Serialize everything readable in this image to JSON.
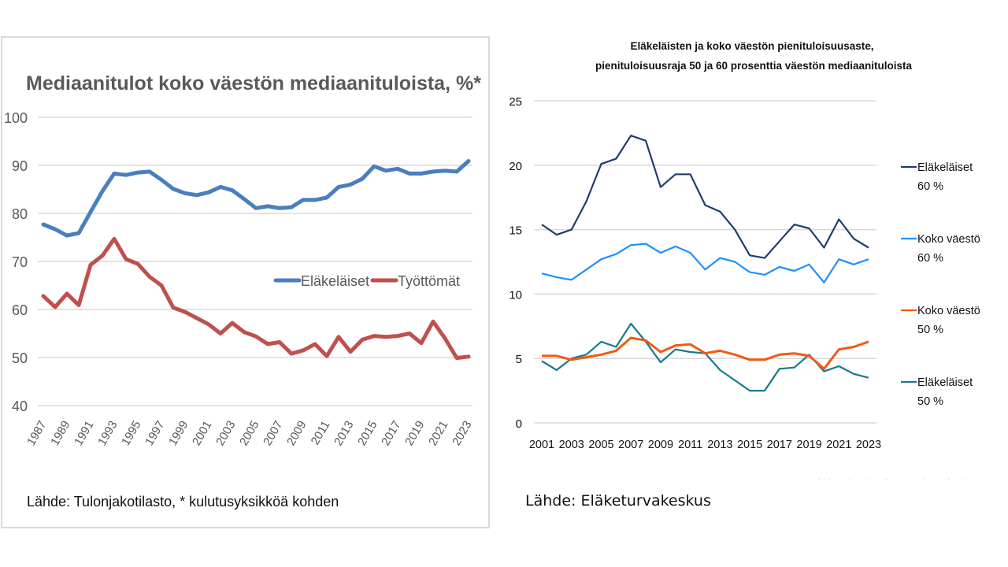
{
  "chart_data": [
    {
      "type": "line",
      "title": "Mediaanitulot koko väestön mediaanituloista, %*",
      "xlabel": "",
      "ylabel": "",
      "ylim": [
        40,
        100
      ],
      "yticks": [
        "40",
        "50",
        "60",
        "70",
        "80",
        "90",
        "100"
      ],
      "xtick_labels": [
        "1987",
        "1989",
        "1991",
        "1993",
        "1995",
        "1997",
        "1999",
        "2001",
        "2003",
        "2005",
        "2007",
        "2009",
        "2011",
        "2013",
        "2015",
        "2017",
        "2019",
        "2021",
        "2023"
      ],
      "grid": true,
      "legend_position": "center-right",
      "x": [
        1987,
        1988,
        1989,
        1990,
        1991,
        1992,
        1993,
        1994,
        1995,
        1996,
        1997,
        1998,
        1999,
        2000,
        2001,
        2002,
        2003,
        2004,
        2005,
        2006,
        2007,
        2008,
        2009,
        2010,
        2011,
        2012,
        2013,
        2014,
        2015,
        2016,
        2017,
        2018,
        2019,
        2020,
        2021,
        2022,
        2023
      ],
      "series": [
        {
          "name": "Eläkeläiset",
          "color": "#4a7ebf",
          "values": [
            77.7,
            76.7,
            75.4,
            75.9,
            80.3,
            84.6,
            88.3,
            88.0,
            88.5,
            88.7,
            87.0,
            85.1,
            84.2,
            83.8,
            84.4,
            85.5,
            84.8,
            83.0,
            81.1,
            81.5,
            81.1,
            81.3,
            82.8,
            82.8,
            83.3,
            85.5,
            86.0,
            87.2,
            89.8,
            88.9,
            89.3,
            88.3,
            88.3,
            88.7,
            88.9,
            88.7,
            90.9
          ]
        },
        {
          "name": "Työttömät",
          "color": "#c0504d",
          "values": [
            62.8,
            60.5,
            63.3,
            60.9,
            69.3,
            71.2,
            74.7,
            70.5,
            69.5,
            66.8,
            65.0,
            60.4,
            59.5,
            58.2,
            56.9,
            55.0,
            57.2,
            55.3,
            54.4,
            52.8,
            53.2,
            50.8,
            51.5,
            52.8,
            50.3,
            54.3,
            51.2,
            53.7,
            54.5,
            54.3,
            54.5,
            55.0,
            53.0,
            57.5,
            54.0,
            49.9,
            50.2
          ]
        }
      ],
      "source": "Lähde: Tulonjakotilasto, * kulutusyksikköä kohden"
    },
    {
      "type": "line",
      "title": "Eläkeläisten ja koko väestön pienituloisuusaste,",
      "subtitle": "pienituloisuusraja 50 ja 60 prosenttia väestön mediaanituloista",
      "xlabel": "",
      "ylabel": "",
      "ylim": [
        0,
        25
      ],
      "yticks": [
        "0",
        "5",
        "10",
        "15",
        "20",
        "25"
      ],
      "xtick_labels": [
        "2001",
        "2003",
        "2005",
        "2007",
        "2009",
        "2011",
        "2013",
        "2015",
        "2017",
        "2019",
        "2021",
        "2023"
      ],
      "grid": true,
      "legend_position": "right",
      "x": [
        2001,
        2002,
        2003,
        2004,
        2005,
        2006,
        2007,
        2008,
        2009,
        2010,
        2011,
        2012,
        2013,
        2014,
        2015,
        2016,
        2017,
        2018,
        2019,
        2020,
        2021,
        2022,
        2023
      ],
      "series": [
        {
          "name": "Eläkeläiset 60 %",
          "legend_line1": "Eläkeläiset",
          "legend_line2": "60 %",
          "color": "#1f3d6e",
          "values": [
            15.4,
            14.6,
            15.0,
            17.2,
            20.1,
            20.5,
            22.3,
            21.9,
            18.3,
            19.3,
            19.3,
            16.9,
            16.4,
            15.0,
            13.0,
            12.8,
            14.1,
            15.4,
            15.1,
            13.6,
            15.8,
            14.3,
            13.6
          ]
        },
        {
          "name": "Koko väestö 60 %",
          "legend_line1": "Koko väestö",
          "legend_line2": "60 %",
          "color": "#1e90ff",
          "values": [
            11.6,
            11.3,
            11.1,
            11.9,
            12.7,
            13.1,
            13.8,
            13.9,
            13.2,
            13.7,
            13.2,
            11.9,
            12.8,
            12.5,
            11.7,
            11.5,
            12.1,
            11.8,
            12.3,
            10.9,
            12.7,
            12.3,
            12.7
          ]
        },
        {
          "name": "Koko väestö 50 %",
          "legend_line1": "Koko väestö",
          "legend_line2": "50 %",
          "color": "#f05a14",
          "values": [
            5.2,
            5.2,
            4.9,
            5.1,
            5.3,
            5.6,
            6.6,
            6.4,
            5.5,
            6.0,
            6.1,
            5.4,
            5.6,
            5.3,
            4.9,
            4.9,
            5.3,
            5.4,
            5.2,
            4.2,
            5.7,
            5.9,
            6.3
          ]
        },
        {
          "name": "Eläkeläiset 50 %",
          "legend_line1": "Eläkeläiset",
          "legend_line2": "50 %",
          "color": "#157a8c",
          "values": [
            4.8,
            4.1,
            5.0,
            5.3,
            6.3,
            5.9,
            7.7,
            6.3,
            4.7,
            5.7,
            5.5,
            5.4,
            4.1,
            3.3,
            2.5,
            2.5,
            4.2,
            4.3,
            5.3,
            4.0,
            4.4,
            3.8,
            3.5
          ]
        }
      ],
      "source": "Lähde: Eläketurvakeskus"
    }
  ]
}
